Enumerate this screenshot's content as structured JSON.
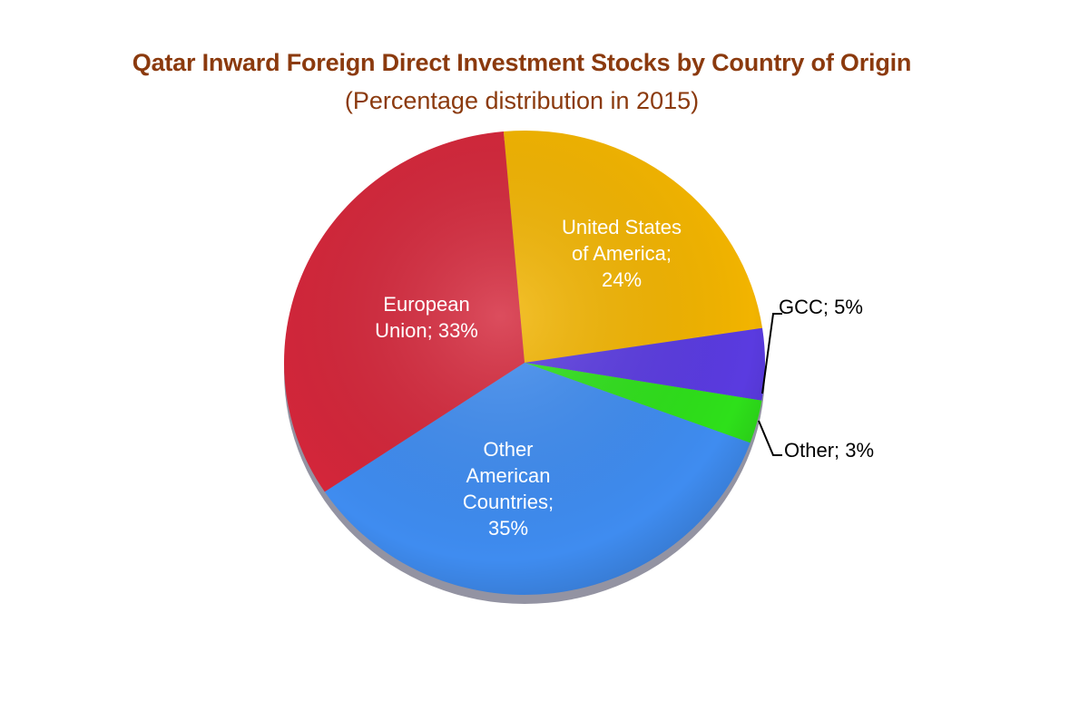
{
  "chart_data": {
    "type": "pie",
    "title": "Qatar Inward Foreign Direct Investment Stocks by Country of Origin",
    "subtitle": "(Percentage distribution in 2015)",
    "slices": [
      {
        "label": "United States of America",
        "value": 24,
        "color": "#F2B400",
        "text_lines": [
          "United States",
          "of America;",
          "24%"
        ]
      },
      {
        "label": "GCC",
        "value": 5,
        "color": "#5A3BE0",
        "text_lines": [
          "GCC; 5%"
        ]
      },
      {
        "label": "Other",
        "value": 3,
        "color": "#2EE01A",
        "text_lines": [
          "Other; 3%"
        ]
      },
      {
        "label": "Other American Countries",
        "value": 35,
        "color": "#3F8CF0",
        "text_lines": [
          "Other",
          "American",
          "Countries;",
          "35%"
        ]
      },
      {
        "label": "European Union",
        "value": 33,
        "color": "#D4263A",
        "text_lines": [
          "European",
          "Union; 33%"
        ]
      }
    ],
    "legend": "none"
  }
}
